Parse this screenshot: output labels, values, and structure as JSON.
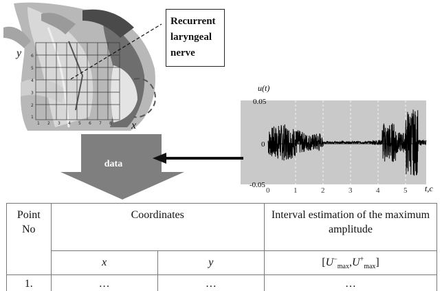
{
  "anatomy": {
    "label_line1": "Recurrent",
    "label_line2": "laryngeal",
    "label_line3": "nerve",
    "axis_y": "y",
    "axis_x": "x",
    "grid_y_ticks": [
      "6",
      "5",
      "4",
      "3",
      "2",
      "1"
    ],
    "grid_x_ticks": [
      "1",
      "2",
      "3",
      "4",
      "5",
      "6",
      "7",
      "8"
    ]
  },
  "arrow": {
    "label": "data"
  },
  "signal": {
    "y_axis_label": "u(t)",
    "x_axis_label": "t,c",
    "y_ticks": [
      "0.05",
      "0",
      "-0.05"
    ],
    "x_ticks": [
      "0",
      "1",
      "2",
      "3",
      "4",
      "5"
    ],
    "ylim": [
      -0.05,
      0.05
    ],
    "xlim": [
      0,
      5.5
    ],
    "dashed_grid_x": [
      1,
      2,
      3,
      4,
      5
    ]
  },
  "table": {
    "header_point": "Point No",
    "header_coordinates": "Coordinates",
    "header_interval": "Interval estimation of the maximum amplitude",
    "sub_x": "x",
    "sub_y": "y",
    "sub_interval": "[U−max, U+max]",
    "row1": {
      "point": "1.",
      "x": "…",
      "y": "…",
      "interval": "…"
    }
  },
  "colors": {
    "arrow_gray": "#7f7f7f",
    "plot_bg": "#c9c9c9",
    "grid_line": "#888888"
  }
}
